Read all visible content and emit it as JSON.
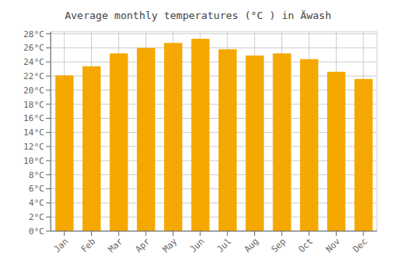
{
  "chart_data": {
    "type": "bar",
    "title": "Average monthly temperatures (°C ) in Ä​wash",
    "categories": [
      "Jan",
      "Feb",
      "Mar",
      "Apr",
      "May",
      "Jun",
      "Jul",
      "Aug",
      "Sep",
      "Oct",
      "Nov",
      "Dec"
    ],
    "values": [
      22.1,
      23.4,
      25.2,
      26.0,
      26.7,
      27.3,
      25.8,
      24.9,
      25.2,
      24.4,
      22.6,
      21.6
    ],
    "color": "#F5A800",
    "ylim": [
      0,
      28.3
    ],
    "yticks": [
      {
        "value": 0,
        "label": "0°C"
      },
      {
        "value": 2,
        "label": "2°C"
      },
      {
        "value": 4,
        "label": "4°C"
      },
      {
        "value": 6,
        "label": "6°C"
      },
      {
        "value": 8,
        "label": "8°C"
      },
      {
        "value": 10,
        "label": "10°C"
      },
      {
        "value": 12,
        "label": "12°C"
      },
      {
        "value": 14,
        "label": "14°C"
      },
      {
        "value": 16,
        "label": "16°C"
      },
      {
        "value": 18,
        "label": "18°C"
      },
      {
        "value": 20,
        "label": "20°C"
      },
      {
        "value": 22,
        "label": "22°C"
      },
      {
        "value": 24,
        "label": "24°C"
      },
      {
        "value": 26,
        "label": "26°C"
      },
      {
        "value": 28,
        "label": "28°C"
      }
    ],
    "grid": true
  }
}
